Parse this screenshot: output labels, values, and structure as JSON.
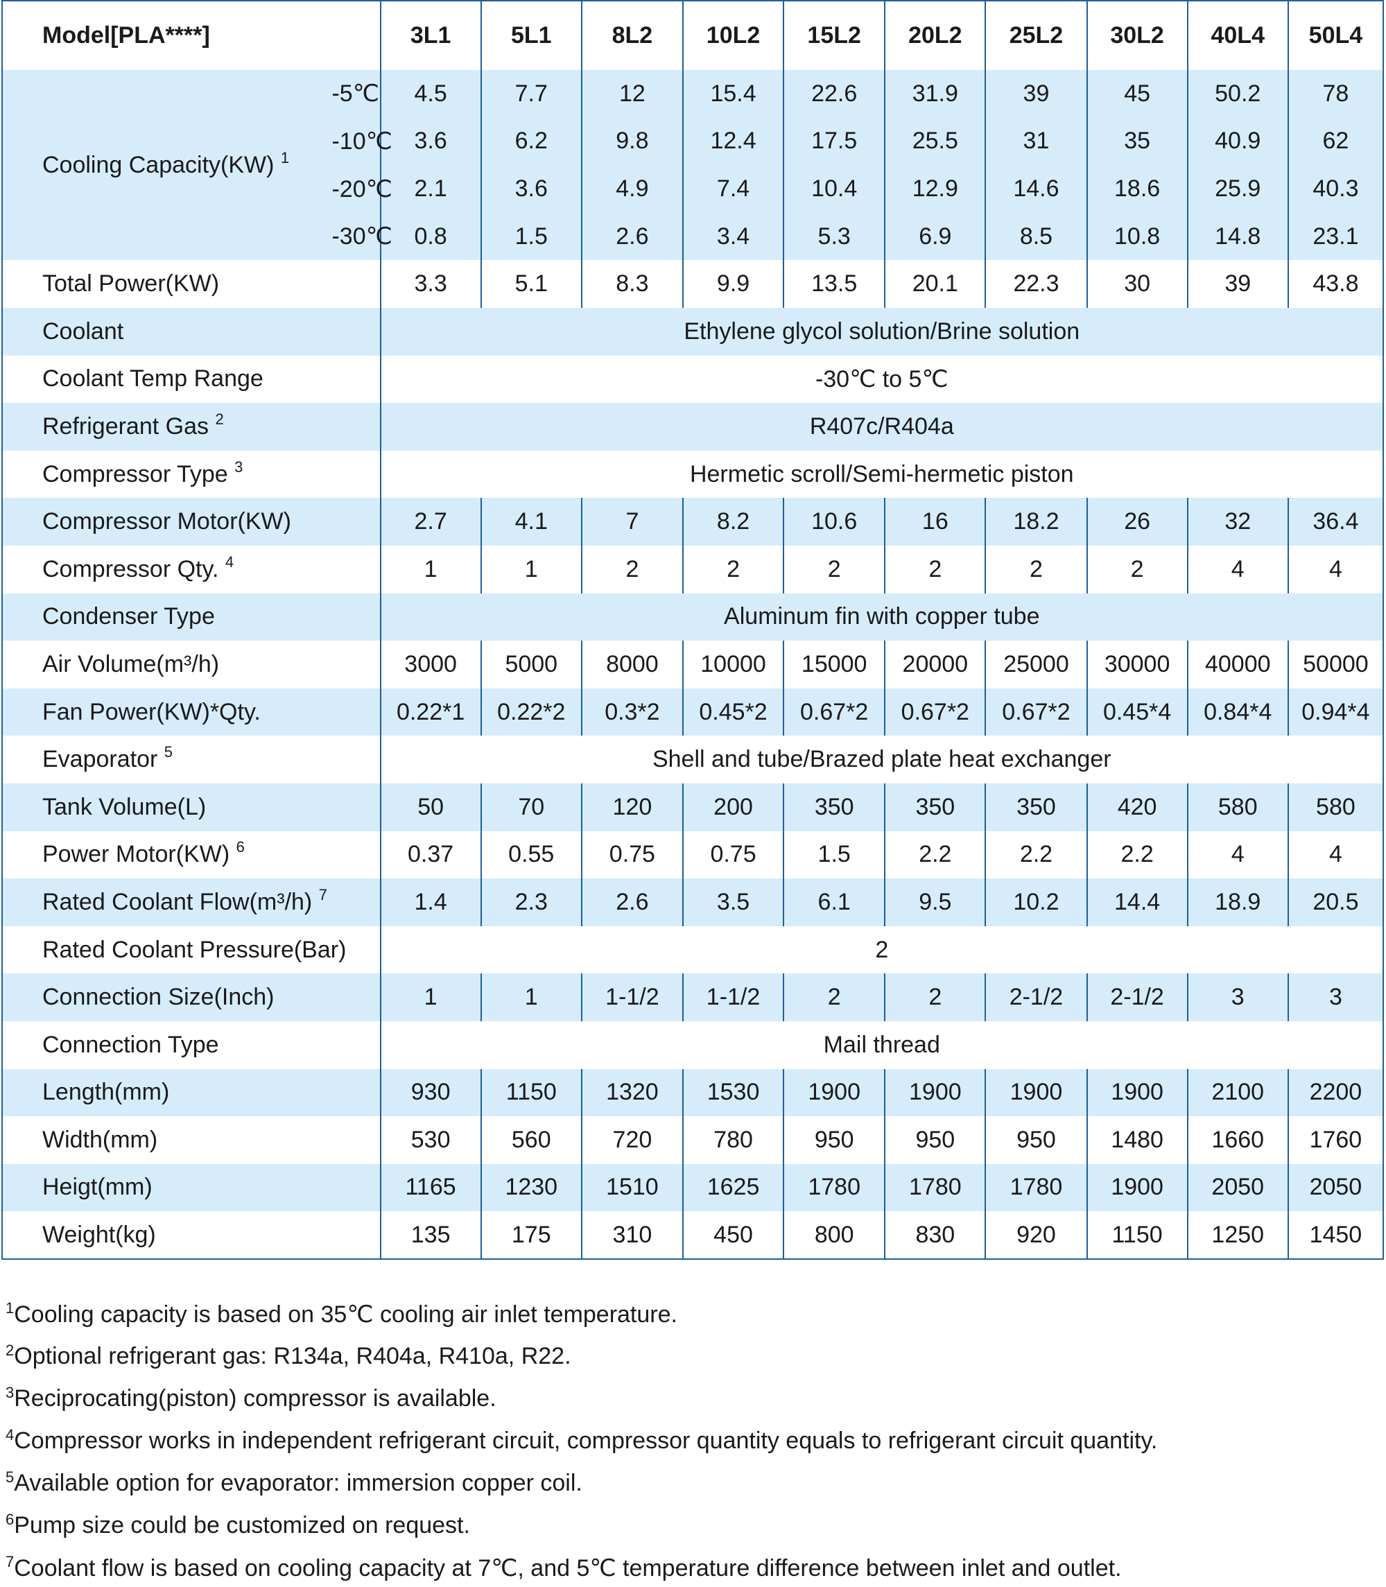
{
  "table": {
    "header_label": "Model[PLA****]",
    "models": [
      "3L1",
      "5L1",
      "8L2",
      "10L2",
      "15L2",
      "20L2",
      "25L2",
      "30L2",
      "40L4",
      "50L4"
    ],
    "cooling_capacity": {
      "label": "Cooling Capacity(KW)",
      "note": "1",
      "rows": [
        {
          "temp": "-5℃",
          "values": [
            "4.5",
            "7.7",
            "12",
            "15.4",
            "22.6",
            "31.9",
            "39",
            "45",
            "50.2",
            "78"
          ]
        },
        {
          "temp": "-10℃",
          "values": [
            "3.6",
            "6.2",
            "9.8",
            "12.4",
            "17.5",
            "25.5",
            "31",
            "35",
            "40.9",
            "62"
          ]
        },
        {
          "temp": "-20℃",
          "values": [
            "2.1",
            "3.6",
            "4.9",
            "7.4",
            "10.4",
            "12.9",
            "14.6",
            "18.6",
            "25.9",
            "40.3"
          ]
        },
        {
          "temp": "-30℃",
          "values": [
            "0.8",
            "1.5",
            "2.6",
            "3.4",
            "5.3",
            "6.9",
            "8.5",
            "10.8",
            "14.8",
            "23.1"
          ]
        }
      ]
    },
    "rows": [
      {
        "label": "Total Power(KW)",
        "note": "",
        "values": [
          "3.3",
          "5.1",
          "8.3",
          "9.9",
          "13.5",
          "20.1",
          "22.3",
          "30",
          "39",
          "43.8"
        ]
      },
      {
        "label": "Coolant",
        "note": "",
        "span": "Ethylene glycol solution/Brine solution"
      },
      {
        "label": "Coolant Temp Range",
        "note": "",
        "span": "-30℃ to 5℃"
      },
      {
        "label": "Refrigerant Gas",
        "note": "2",
        "span": "R407c/R404a"
      },
      {
        "label": "Compressor Type",
        "note": "3",
        "span": "Hermetic scroll/Semi-hermetic piston"
      },
      {
        "label": "Compressor Motor(KW)",
        "note": "",
        "values": [
          "2.7",
          "4.1",
          "7",
          "8.2",
          "10.6",
          "16",
          "18.2",
          "26",
          "32",
          "36.4"
        ]
      },
      {
        "label": "Compressor Qty.",
        "note": "4",
        "values": [
          "1",
          "1",
          "2",
          "2",
          "2",
          "2",
          "2",
          "2",
          "4",
          "4"
        ]
      },
      {
        "label": "Condenser Type",
        "note": "",
        "span": "Aluminum fin with copper tube"
      },
      {
        "label": "Air Volume(m³/h)",
        "note": "",
        "values": [
          "3000",
          "5000",
          "8000",
          "10000",
          "15000",
          "20000",
          "25000",
          "30000",
          "40000",
          "50000"
        ]
      },
      {
        "label": "Fan Power(KW)*Qty.",
        "note": "",
        "values": [
          "0.22*1",
          "0.22*2",
          "0.3*2",
          "0.45*2",
          "0.67*2",
          "0.67*2",
          "0.67*2",
          "0.45*4",
          "0.84*4",
          "0.94*4"
        ]
      },
      {
        "label": "Evaporator",
        "note": "5",
        "span": "Shell and tube/Brazed plate heat exchanger"
      },
      {
        "label": "Tank Volume(L)",
        "note": "",
        "values": [
          "50",
          "70",
          "120",
          "200",
          "350",
          "350",
          "350",
          "420",
          "580",
          "580"
        ]
      },
      {
        "label": "Power Motor(KW)",
        "note": "6",
        "values": [
          "0.37",
          "0.55",
          "0.75",
          "0.75",
          "1.5",
          "2.2",
          "2.2",
          "2.2",
          "4",
          "4"
        ]
      },
      {
        "label": "Rated Coolant Flow(m³/h)",
        "note": "7",
        "values": [
          "1.4",
          "2.3",
          "2.6",
          "3.5",
          "6.1",
          "9.5",
          "10.2",
          "14.4",
          "18.9",
          "20.5"
        ]
      },
      {
        "label": "Rated Coolant Pressure(Bar)",
        "note": "",
        "span": "2"
      },
      {
        "label": "Connection Size(Inch)",
        "note": "",
        "values": [
          "1",
          "1",
          "1-1/2",
          "1-1/2",
          "2",
          "2",
          "2-1/2",
          "2-1/2",
          "3",
          "3"
        ]
      },
      {
        "label": "Connection Type",
        "note": "",
        "span": "Mail thread"
      },
      {
        "label": "Length(mm)",
        "note": "",
        "values": [
          "930",
          "1150",
          "1320",
          "1530",
          "1900",
          "1900",
          "1900",
          "1900",
          "2100",
          "2200"
        ]
      },
      {
        "label": "Width(mm)",
        "note": "",
        "values": [
          "530",
          "560",
          "720",
          "780",
          "950",
          "950",
          "950",
          "1480",
          "1660",
          "1760"
        ]
      },
      {
        "label": "Heigt(mm)",
        "note": "",
        "values": [
          "1165",
          "1230",
          "1510",
          "1625",
          "1780",
          "1780",
          "1780",
          "1900",
          "2050",
          "2050"
        ]
      },
      {
        "label": "Weight(kg)",
        "note": "",
        "values": [
          "135",
          "175",
          "310",
          "450",
          "800",
          "830",
          "920",
          "1150",
          "1250",
          "1450"
        ]
      }
    ]
  },
  "footnotes": [
    {
      "num": "1",
      "text": "Cooling capacity is based on 35℃ cooling air inlet temperature."
    },
    {
      "num": "2",
      "text": "Optional refrigerant gas: R134a, R404a, R410a, R22."
    },
    {
      "num": "3",
      "text": "Reciprocating(piston) compressor is available."
    },
    {
      "num": "4",
      "text": "Compressor works in independent refrigerant circuit, compressor quantity equals to refrigerant circuit quantity."
    },
    {
      "num": "5",
      "text": "Available option for evaporator: immersion copper coil."
    },
    {
      "num": "6",
      "text": "Pump size could be customized on request."
    },
    {
      "num": "7",
      "text": "Coolant flow is based on cooling capacity at 7℃, and 5℃ temperature difference between inlet and outlet."
    }
  ],
  "colors": {
    "row_blue": "#d6ecfb",
    "border_blue": "#1f5f9c"
  }
}
